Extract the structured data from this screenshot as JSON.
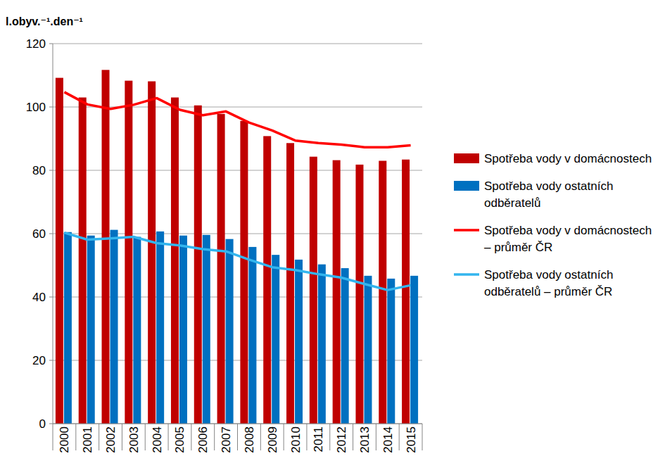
{
  "chart_data": {
    "type": "bar",
    "y_label": "l.obyv.⁻¹.den⁻¹",
    "categories": [
      "2000",
      "2001",
      "2002",
      "2003",
      "2004",
      "2005",
      "2006",
      "2007",
      "2008",
      "2009",
      "2010",
      "2011",
      "2012",
      "2013",
      "2014",
      "2015"
    ],
    "series": [
      {
        "name": "Spotřeba vody v domácnostech",
        "type": "bar",
        "color": "#c00000",
        "values": [
          109.2,
          103.0,
          111.7,
          108.3,
          108.1,
          103.0,
          100.5,
          97.8,
          95.6,
          90.8,
          88.6,
          84.3,
          83.2,
          81.8,
          83.0,
          83.4
        ]
      },
      {
        "name": "Spotřeba vody ostatních odběratelů",
        "type": "bar",
        "color": "#0070c0",
        "values": [
          60.5,
          59.4,
          61.2,
          59.0,
          60.7,
          59.4,
          59.6,
          58.3,
          55.8,
          53.3,
          51.8,
          50.3,
          49.1,
          46.7,
          45.8,
          46.7
        ]
      },
      {
        "name": "Spotřeba vody v domácnostech – průměr ČR",
        "type": "line",
        "color": "#ff0000",
        "values": [
          104.7,
          100.8,
          99.4,
          100.7,
          102.8,
          99.1,
          97.4,
          98.6,
          95.1,
          92.6,
          89.4,
          88.6,
          88.1,
          87.3,
          87.3,
          87.9
        ]
      },
      {
        "name": "Spotřeba vody ostatních odběratelů – průměr ČR",
        "type": "line",
        "color": "#33b5ee",
        "values": [
          60.3,
          58.1,
          58.5,
          59.0,
          57.0,
          56.3,
          55.1,
          54.4,
          51.8,
          49.4,
          48.5,
          47.2,
          46.1,
          44.1,
          42.2,
          43.7
        ]
      }
    ],
    "ylim": [
      0,
      120
    ],
    "yticks": [
      0,
      20,
      40,
      60,
      80,
      100,
      120
    ],
    "grid": true,
    "legend": "right"
  }
}
